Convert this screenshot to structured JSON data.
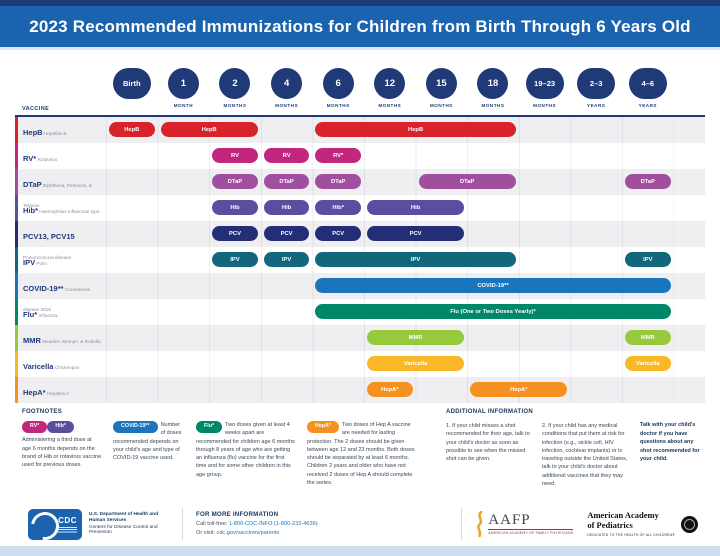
{
  "title": "2023 Recommended Immunizations for Children from Birth Through 6 Years Old",
  "colors": {
    "header_bar": "#1b63ae",
    "top_strip": "#203a77",
    "age_circle": "#203a77",
    "row_alt": "#efeef1",
    "bottom_strip": "#cfdff0",
    "link_blue": "#1b75bc"
  },
  "chart_data": {
    "type": "table",
    "title": "2023 Recommended Immunizations for Children from Birth Through 6 Years Old",
    "vaccine_column_header": "VACCINE",
    "columns": [
      {
        "label": "Birth",
        "sub": ""
      },
      {
        "label": "1",
        "sub": "MONTH"
      },
      {
        "label": "2",
        "sub": "MONTHS"
      },
      {
        "label": "4",
        "sub": "MONTHS"
      },
      {
        "label": "6",
        "sub": "MONTHS"
      },
      {
        "label": "12",
        "sub": "MONTHS"
      },
      {
        "label": "15",
        "sub": "MONTHS"
      },
      {
        "label": "18",
        "sub": "MONTHS"
      },
      {
        "label": "19–23",
        "sub": "MONTHS"
      },
      {
        "label": "2–3",
        "sub": "YEARS"
      },
      {
        "label": "4–6",
        "sub": "YEARS"
      }
    ],
    "rows": [
      {
        "vaccine": "HepB",
        "disease": "Hepatitis B",
        "color": "#d8232a",
        "bars": [
          {
            "cols": [
              1,
              1
            ],
            "from": "Birth",
            "to": "Birth",
            "label": "HepB"
          },
          {
            "cols": [
              2,
              3
            ],
            "from": "1 month",
            "to": "2 months",
            "label": "HepB"
          },
          {
            "cols": [
              5,
              8
            ],
            "from": "6 months",
            "to": "18 months",
            "label": "HepB"
          }
        ]
      },
      {
        "vaccine": "RV*",
        "disease": "Rotavirus",
        "color": "#c2267d",
        "bars": [
          {
            "cols": [
              3,
              3
            ],
            "from": "2 months",
            "to": "2 months",
            "label": "RV"
          },
          {
            "cols": [
              4,
              4
            ],
            "from": "4 months",
            "to": "4 months",
            "label": "RV"
          },
          {
            "cols": [
              5,
              5
            ],
            "from": "6 months",
            "to": "6 months",
            "label": "RV*"
          }
        ]
      },
      {
        "vaccine": "DTaP",
        "disease": "Diphtheria, Pertussis, & Tetanus",
        "color": "#a04f9f",
        "bars": [
          {
            "cols": [
              3,
              3
            ],
            "from": "2 months",
            "to": "2 months",
            "label": "DTaP"
          },
          {
            "cols": [
              4,
              4
            ],
            "from": "4 months",
            "to": "4 months",
            "label": "DTaP"
          },
          {
            "cols": [
              5,
              5
            ],
            "from": "6 months",
            "to": "6 months",
            "label": "DTaP"
          },
          {
            "cols": [
              7,
              8
            ],
            "from": "15 months",
            "to": "18 months",
            "label": "DTaP"
          },
          {
            "cols": [
              11,
              11
            ],
            "from": "4–6 years",
            "to": "4–6 years",
            "label": "DTaP"
          }
        ]
      },
      {
        "vaccine": "Hib*",
        "disease": "Haemophilus influenzae type b",
        "color": "#5a4ea1",
        "bars": [
          {
            "cols": [
              3,
              3
            ],
            "from": "2 months",
            "to": "2 months",
            "label": "Hib"
          },
          {
            "cols": [
              4,
              4
            ],
            "from": "4 months",
            "to": "4 months",
            "label": "Hib"
          },
          {
            "cols": [
              5,
              5
            ],
            "from": "6 months",
            "to": "6 months",
            "label": "Hib*"
          },
          {
            "cols": [
              6,
              7
            ],
            "from": "12 months",
            "to": "15 months",
            "label": "Hib"
          }
        ]
      },
      {
        "vaccine": "PCV13, PCV15",
        "disease": "Pneumococcal disease",
        "color": "#232e77",
        "bars": [
          {
            "cols": [
              3,
              3
            ],
            "from": "2 months",
            "to": "2 months",
            "label": "PCV"
          },
          {
            "cols": [
              4,
              4
            ],
            "from": "4 months",
            "to": "4 months",
            "label": "PCV"
          },
          {
            "cols": [
              5,
              5
            ],
            "from": "6 months",
            "to": "6 months",
            "label": "PCV"
          },
          {
            "cols": [
              6,
              7
            ],
            "from": "12 months",
            "to": "15 months",
            "label": "PCV"
          }
        ]
      },
      {
        "vaccine": "IPV",
        "disease": "Polio",
        "color": "#13677d",
        "bars": [
          {
            "cols": [
              3,
              3
            ],
            "from": "2 months",
            "to": "2 months",
            "label": "IPV"
          },
          {
            "cols": [
              4,
              4
            ],
            "from": "4 months",
            "to": "4 months",
            "label": "IPV"
          },
          {
            "cols": [
              5,
              8
            ],
            "from": "6 months",
            "to": "18 months",
            "label": "IPV"
          },
          {
            "cols": [
              11,
              11
            ],
            "from": "4–6 years",
            "to": "4–6 years",
            "label": "IPV"
          }
        ]
      },
      {
        "vaccine": "COVID-19**",
        "disease": "Coronavirus disease 2019",
        "color": "#1b75bc",
        "bars": [
          {
            "cols": [
              5,
              11
            ],
            "from": "6 months",
            "to": "4–6 years",
            "label": "COVID-19**"
          }
        ]
      },
      {
        "vaccine": "Flu*",
        "disease": "Influenza",
        "color": "#008767",
        "bars": [
          {
            "cols": [
              5,
              11
            ],
            "from": "6 months",
            "to": "4–6 years",
            "label": "Flu (One or Two Doses Yearly)*"
          }
        ]
      },
      {
        "vaccine": "MMR",
        "disease": "Measles, Mumps, & Rubella",
        "color": "#97c93d",
        "bars": [
          {
            "cols": [
              6,
              7
            ],
            "from": "12 months",
            "to": "15 months",
            "label": "MMR"
          },
          {
            "cols": [
              11,
              11
            ],
            "from": "4–6 years",
            "to": "4–6 years",
            "label": "MMR"
          }
        ]
      },
      {
        "vaccine": "Varicella",
        "disease": "Chickenpox",
        "color": "#f9b927",
        "bars": [
          {
            "cols": [
              6,
              7
            ],
            "from": "12 months",
            "to": "15 months",
            "label": "Varicella"
          },
          {
            "cols": [
              11,
              11
            ],
            "from": "4–6 years",
            "to": "4–6 years",
            "label": "Varicella"
          }
        ]
      },
      {
        "vaccine": "HepA*",
        "disease": "Hepatitis A",
        "color": "#f49120",
        "bars": [
          {
            "cols": [
              6,
              6
            ],
            "from": "12 months",
            "to": "12 months",
            "label": "HepA*"
          },
          {
            "cols": [
              8,
              9
            ],
            "from": "18 months",
            "to": "19–23 months",
            "label": "HepA*"
          }
        ]
      }
    ]
  },
  "footnotes": {
    "heading": "FOOTNOTES",
    "items": [
      {
        "pills": [
          {
            "label": "RV*",
            "color": "#c2267d"
          },
          {
            "label": "Hib*",
            "color": "#5a4ea1"
          }
        ],
        "text": "Administering a third dose at age 6 months depends on the brand of Hib or rotavirus vaccine used for previous doses."
      },
      {
        "pills": [
          {
            "label": "COVID-19**",
            "color": "#1b75bc"
          }
        ],
        "text": "Number of doses recommended depends on your child's age and type of COVID-19 vaccine used."
      },
      {
        "pills": [
          {
            "label": "Flu*",
            "color": "#008767"
          }
        ],
        "text": "Two doses given at least 4 weeks apart are recommended for children age 6 months through 8 years of age who are getting an influenza (flu) vaccine for the first time and for some other children in this age group."
      },
      {
        "pills": [
          {
            "label": "HepA*",
            "color": "#f49120"
          }
        ],
        "text": "Two doses of Hep A vaccine are needed for lasting protection. The 2 doses should be given between age 12 and 23 months. Both doses should be separated by at least 6 months. Children 2 years and older who have not received 2 doses of Hep A should complete the series."
      }
    ]
  },
  "additional_info": {
    "heading": "ADDITIONAL INFORMATION",
    "items": [
      "1. If your child misses a shot recommended for their age, talk to your child's doctor as soon as possible to see when the missed shot can be given.",
      "2. If your child has any medical conditions that put them at risk for infection (e.g., sickle cell, HIV infection, cochlear implants) or is traveling outside the United States, talk to your child's doctor about additional vaccines that they may need."
    ],
    "emphasis": "Talk with your child's doctor if you have questions about any shot recommended for your child."
  },
  "footer": {
    "cdc_logo_text": "CDC",
    "dept_line1": "U.S. Department of Health and Human Services",
    "dept_line2": "Centers for Disease Control and Prevention",
    "more_info": {
      "heading": "FOR MORE INFORMATION",
      "call_prefix": "Call toll-free: ",
      "call_number": "1-800-CDC-INFO (1-800-232-4636)",
      "visit_prefix": "Or visit: ",
      "visit_link": "cdc.gov/vaccines/parents"
    },
    "aafp": {
      "name": "AAFP",
      "tagline": "AMERICAN ACADEMY OF FAMILY PHYSICIANS"
    },
    "aap": {
      "line1": "American Academy",
      "line2": "of Pediatrics",
      "tagline": "DEDICATED TO THE HEALTH OF ALL CHILDREN®"
    }
  }
}
